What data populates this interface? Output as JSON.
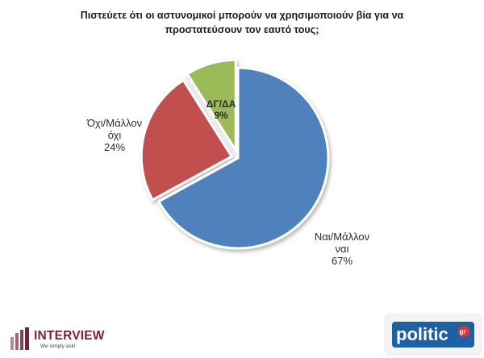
{
  "title_line1": "Πιστεύετε ότι οι αστυνομικοί μπορούν  να χρησιμοποιούν βία για να",
  "title_line2": "προστατεύσουν τον εαυτό τους;",
  "chart_data": {
    "type": "pie",
    "title": "Πιστεύετε ότι οι αστυνομικοί μπορούν  να χρησιμοποιούν βία για να προστατεύσουν τον εαυτό τους;",
    "slices": [
      {
        "label_lines": [
          "Ναι/Μάλλον",
          "ναι"
        ],
        "pct_label": "67%",
        "value": 67,
        "color": "#4f81bd"
      },
      {
        "label_lines": [
          "Όχι/Μάλλον",
          "όχι"
        ],
        "pct_label": "24%",
        "value": 24,
        "color": "#c0504d"
      },
      {
        "label_lines": [
          "ΔΓ/ΔΑ"
        ],
        "pct_label": "9%",
        "value": 9,
        "color": "#9bbb59"
      }
    ]
  },
  "logos": {
    "interview_brand": "INTERVIEW",
    "interview_tagline": "We simply ask!",
    "politic_text": "politic",
    "politic_suffix": "gr"
  }
}
